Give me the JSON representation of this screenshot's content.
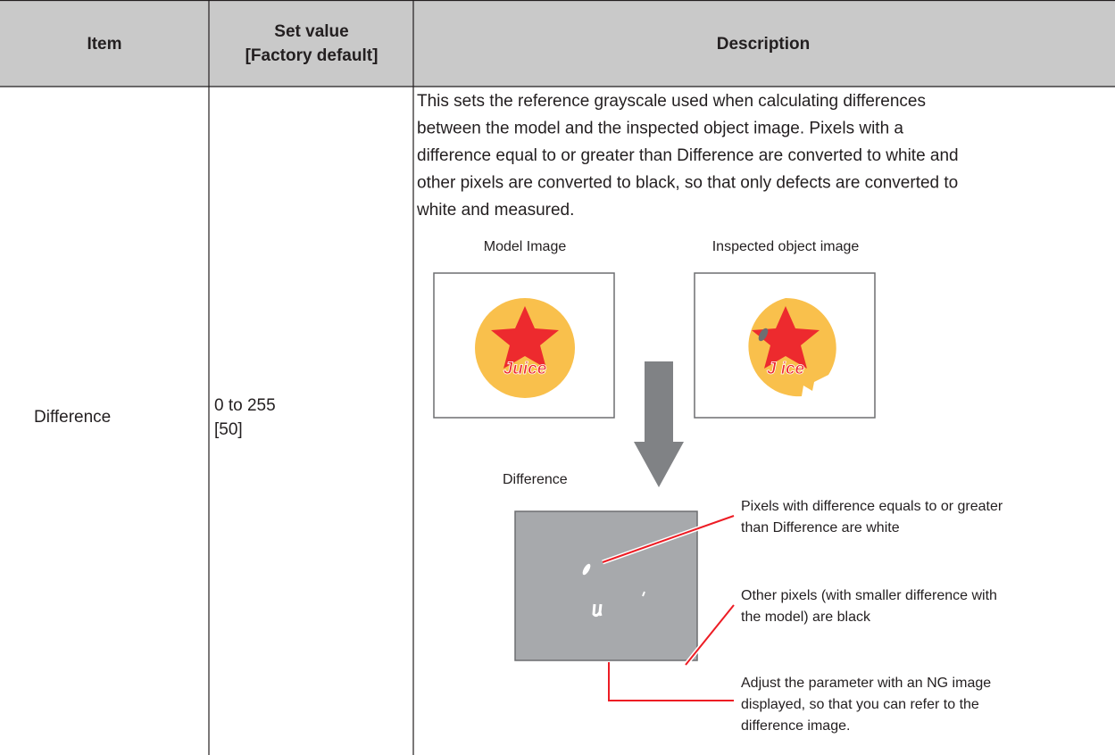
{
  "table": {
    "header": {
      "item": "Item",
      "set_value": [
        "Set value",
        "[Factory default]"
      ],
      "description": "Description"
    },
    "rows": [
      {
        "item": "Difference",
        "set_value": [
          "0 to 255",
          "[50]"
        ],
        "description": {
          "paragraph_lines": [
            "This sets the reference grayscale used when calculating differences",
            "between the model and the inspected object image. Pixels with a",
            "difference equal to or greater than Difference are converted to white and",
            "other pixels are converted to black, so that only defects are converted to",
            "white and measured."
          ],
          "figure": {
            "model_label": "Model Image",
            "model_text": "Juice",
            "inspected_label": "Inspected object image",
            "inspected_text": "J ice",
            "difference_label": "Difference",
            "callouts": [
              [
                "Pixels with difference equals to or greater",
                "than Difference are white"
              ],
              [
                "Other pixels (with smaller difference with",
                "the model) are black"
              ],
              [
                "Adjust the parameter with an NG image",
                "displayed, so that you can refer to the",
                "difference image."
              ]
            ]
          }
        }
      }
    ]
  }
}
